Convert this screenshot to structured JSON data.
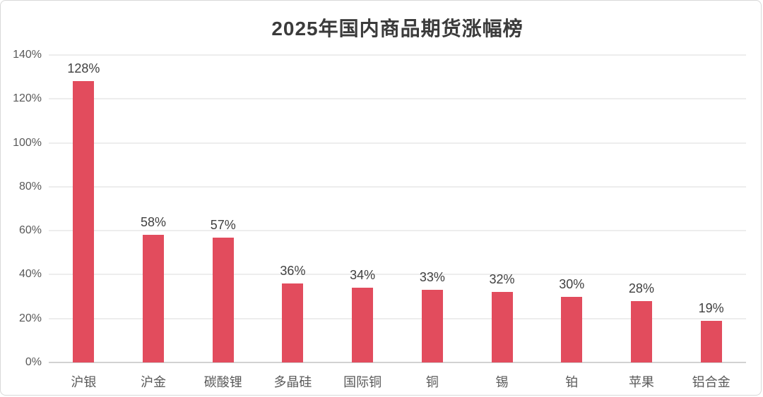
{
  "chart_data": {
    "type": "bar",
    "title": "2025年国内商品期货涨幅榜",
    "categories": [
      "沪银",
      "沪金",
      "碳酸锂",
      "多晶硅",
      "国际铜",
      "铜",
      "锡",
      "铂",
      "苹果",
      "铝合金"
    ],
    "values": [
      128,
      58,
      57,
      36,
      34,
      33,
      32,
      30,
      28,
      19
    ],
    "value_labels": [
      "128%",
      "58%",
      "57%",
      "36%",
      "34%",
      "33%",
      "32%",
      "30%",
      "28%",
      "19%"
    ],
    "xlabel": "",
    "ylabel": "",
    "ylim": [
      0,
      140
    ],
    "ytick_values": [
      0,
      20,
      40,
      60,
      80,
      100,
      120,
      140
    ],
    "ytick_labels": [
      "0%",
      "20%",
      "40%",
      "60%",
      "80%",
      "100%",
      "120%",
      "140%"
    ],
    "grid": "horizontal",
    "legend": "none",
    "colors": {
      "bar": "#e24c5d",
      "gridline": "#ededed",
      "axis_line": "#d2d2d2",
      "title_text": "#3b3b3b",
      "tick_text": "#595959",
      "data_label_text": "#404040",
      "card_border": "#d8d8d8",
      "background": "#ffffff"
    }
  }
}
